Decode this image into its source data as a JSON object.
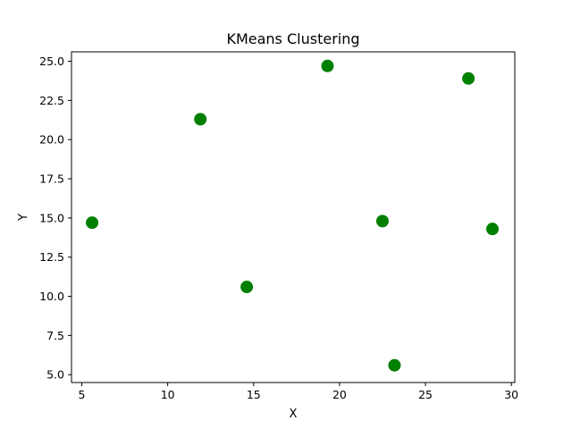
{
  "chart_data": {
    "type": "scatter",
    "title": "KMeans Clustering",
    "xlabel": "X",
    "ylabel": "Y",
    "xlim": [
      4.4,
      30.2
    ],
    "ylim": [
      4.5,
      25.6
    ],
    "xticks": [
      5,
      10,
      15,
      20,
      25,
      30
    ],
    "yticks": [
      5.0,
      7.5,
      10.0,
      12.5,
      15.0,
      17.5,
      20.0,
      22.5,
      25.0
    ],
    "x_tick_labels": [
      "5",
      "10",
      "15",
      "20",
      "25",
      "30"
    ],
    "y_tick_labels": [
      "5.0",
      "7.5",
      "10.0",
      "12.5",
      "15.0",
      "17.5",
      "20.0",
      "22.5",
      "25.0"
    ],
    "grid": false,
    "marker_color": "#008000",
    "points": [
      {
        "x": 5.6,
        "y": 14.7
      },
      {
        "x": 11.9,
        "y": 21.3
      },
      {
        "x": 14.6,
        "y": 10.6
      },
      {
        "x": 19.3,
        "y": 24.7
      },
      {
        "x": 22.5,
        "y": 14.8
      },
      {
        "x": 23.2,
        "y": 5.6
      },
      {
        "x": 27.5,
        "y": 23.9
      },
      {
        "x": 28.9,
        "y": 14.3
      }
    ]
  }
}
